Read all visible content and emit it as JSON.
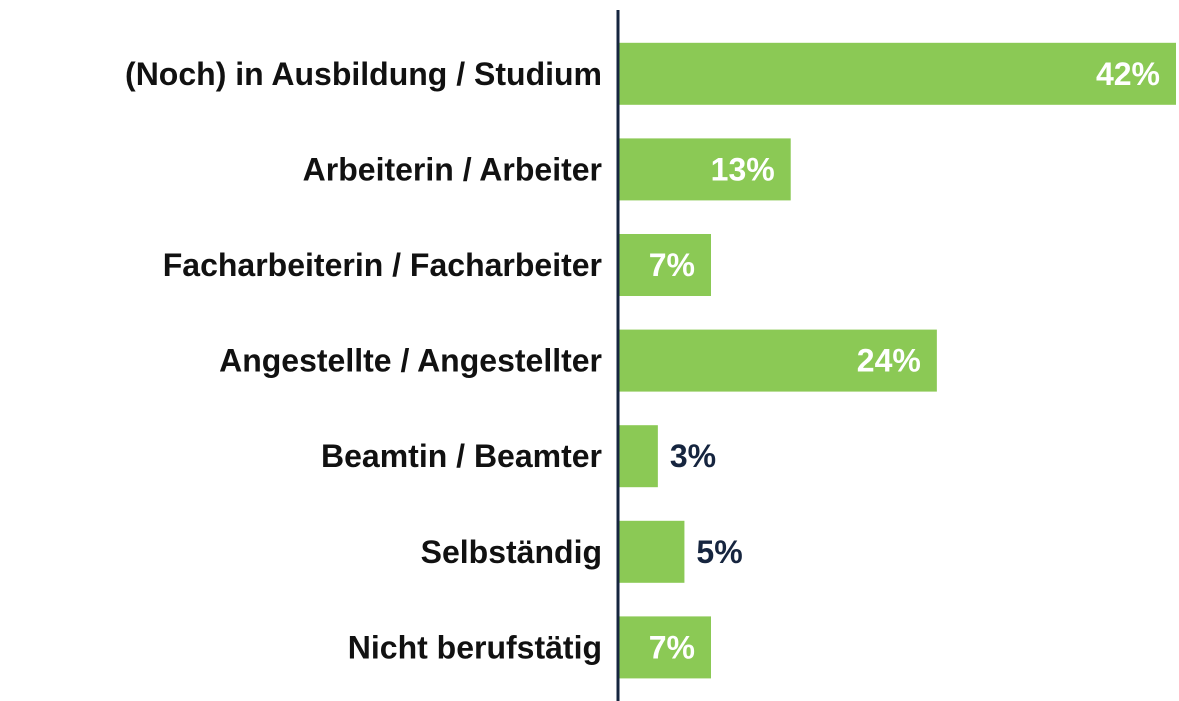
{
  "chart_data": {
    "type": "bar",
    "orientation": "horizontal",
    "categories": [
      "(Noch) in Ausbildung / Studium",
      "Arbeiterin / Arbeiter",
      "Facharbeiterin / Facharbeiter",
      "Angestellte / Angestellter",
      "Beamtin / Beamter",
      "Selbständig",
      "Nicht berufstätig"
    ],
    "values": [
      42,
      13,
      7,
      24,
      3,
      5,
      7
    ],
    "value_labels": [
      "42%",
      "13%",
      "7%",
      "24%",
      "3%",
      "5%",
      "7%"
    ],
    "xlim": [
      0,
      42
    ],
    "color": "#8bc955",
    "axis_color": "#16253f",
    "label_color_inside": "#ffffff",
    "label_color_outside": "#16253f"
  }
}
